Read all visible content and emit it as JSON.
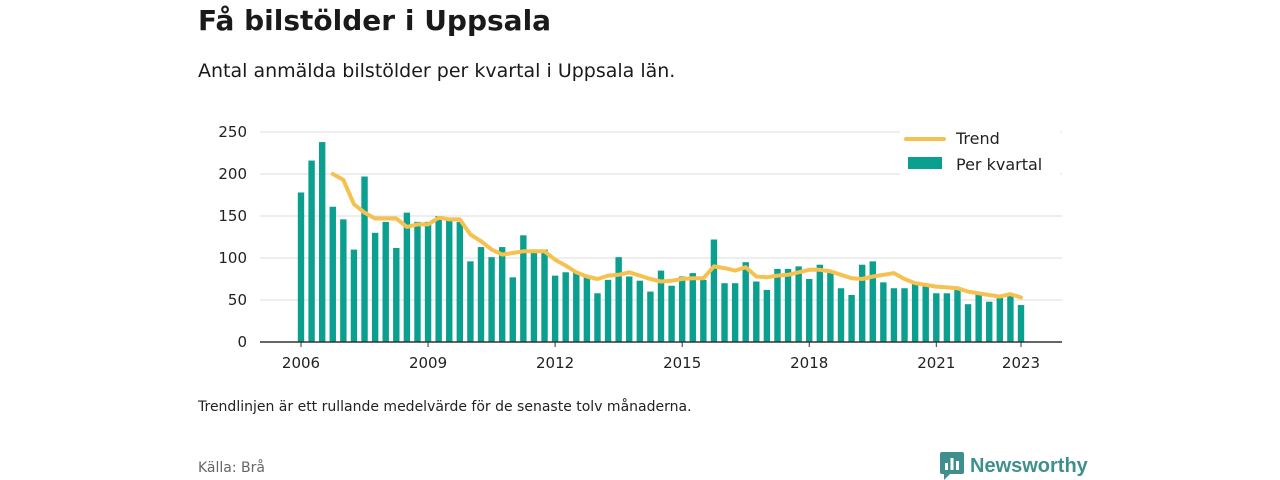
{
  "header": {
    "title": "Få bilstölder i Uppsala",
    "subtitle": "Antal anmälda bilstölder per kvartal i Uppsala län."
  },
  "footer": {
    "note": "Trendlinjen är ett rullande medelvärde för de senaste tolv månaderna.",
    "source": "Källa: Brå",
    "brand": "Newsworthy"
  },
  "colors": {
    "bars": "#0a9f8f",
    "trend": "#f5c150",
    "grid": "#dddddd",
    "axis": "#333333",
    "brand": "#3f8f8e"
  },
  "chart_data": {
    "type": "bar",
    "ylim": [
      0,
      250
    ],
    "yticks": [
      0,
      50,
      100,
      150,
      200,
      250
    ],
    "xticks": [
      "2006",
      "2009",
      "2012",
      "2015",
      "2018",
      "2021",
      "2023"
    ],
    "x_range": [
      2006,
      2023
    ],
    "grid": true,
    "legend_position": "top-right",
    "categories": [
      "2006 Q1",
      "2006 Q2",
      "2006 Q3",
      "2006 Q4",
      "2007 Q1",
      "2007 Q2",
      "2007 Q3",
      "2007 Q4",
      "2008 Q1",
      "2008 Q2",
      "2008 Q3",
      "2008 Q4",
      "2009 Q1",
      "2009 Q2",
      "2009 Q3",
      "2009 Q4",
      "2010 Q1",
      "2010 Q2",
      "2010 Q3",
      "2010 Q4",
      "2011 Q1",
      "2011 Q2",
      "2011 Q3",
      "2011 Q4",
      "2012 Q1",
      "2012 Q2",
      "2012 Q3",
      "2012 Q4",
      "2013 Q1",
      "2013 Q2",
      "2013 Q3",
      "2013 Q4",
      "2014 Q1",
      "2014 Q2",
      "2014 Q3",
      "2014 Q4",
      "2015 Q1",
      "2015 Q2",
      "2015 Q3",
      "2015 Q4",
      "2016 Q1",
      "2016 Q2",
      "2016 Q3",
      "2016 Q4",
      "2017 Q1",
      "2017 Q2",
      "2017 Q3",
      "2017 Q4",
      "2018 Q1",
      "2018 Q2",
      "2018 Q3",
      "2018 Q4",
      "2019 Q1",
      "2019 Q2",
      "2019 Q3",
      "2019 Q4",
      "2020 Q1",
      "2020 Q2",
      "2020 Q3",
      "2020 Q4",
      "2021 Q1",
      "2021 Q2",
      "2021 Q3",
      "2021 Q4",
      "2022 Q1",
      "2022 Q2",
      "2022 Q3",
      "2022 Q4",
      "2023 Q1"
    ],
    "series": [
      {
        "name": "Per kvartal",
        "kind": "bar",
        "values": [
          178,
          216,
          238,
          161,
          146,
          110,
          197,
          130,
          143,
          112,
          154,
          143,
          143,
          150,
          148,
          143,
          96,
          113,
          101,
          113,
          77,
          127,
          110,
          110,
          79,
          83,
          83,
          78,
          58,
          74,
          101,
          78,
          73,
          60,
          85,
          67,
          78,
          82,
          74,
          122,
          70,
          70,
          95,
          72,
          62,
          87,
          87,
          90,
          75,
          92,
          85,
          64,
          56,
          92,
          96,
          71,
          64,
          64,
          72,
          67,
          58,
          58,
          64,
          45,
          57,
          48,
          53,
          55,
          44
        ]
      },
      {
        "name": "Trend",
        "kind": "line",
        "values": [
          null,
          null,
          null,
          200,
          193,
          164,
          154,
          147,
          147,
          147,
          137,
          140,
          140,
          148,
          146,
          146,
          128,
          120,
          110,
          104,
          106,
          108,
          108,
          108,
          98,
          91,
          83,
          78,
          75,
          79,
          80,
          83,
          79,
          75,
          72,
          73,
          75,
          76,
          76,
          90,
          88,
          85,
          89,
          78,
          77,
          79,
          80,
          83,
          86,
          86,
          84,
          80,
          76,
          75,
          78,
          80,
          82,
          75,
          70,
          68,
          66,
          65,
          64,
          60,
          58,
          56,
          54,
          57,
          53
        ]
      }
    ]
  }
}
